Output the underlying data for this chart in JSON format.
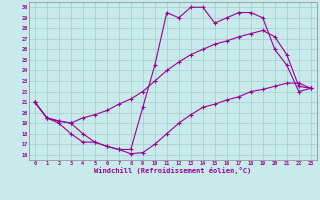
{
  "title": "",
  "xlabel": "Windchill (Refroidissement éolien,°C)",
  "xlim": [
    -0.5,
    23.5
  ],
  "ylim": [
    15.5,
    30.5
  ],
  "xticks": [
    0,
    1,
    2,
    3,
    4,
    5,
    6,
    7,
    8,
    9,
    10,
    11,
    12,
    13,
    14,
    15,
    16,
    17,
    18,
    19,
    20,
    21,
    22,
    23
  ],
  "yticks": [
    16,
    17,
    18,
    19,
    20,
    21,
    22,
    23,
    24,
    25,
    26,
    27,
    28,
    29,
    30
  ],
  "bg_color": "#c8eaea",
  "line_color": "#990099",
  "grid_color": "#a0cccc",
  "line1_x": [
    0,
    1,
    2,
    3,
    4,
    5,
    6,
    7,
    8,
    9,
    10,
    11,
    12,
    13,
    14,
    15,
    16,
    17,
    18,
    19,
    20,
    21,
    22,
    23
  ],
  "line1_y": [
    21.0,
    19.5,
    19.0,
    18.0,
    17.2,
    17.2,
    16.8,
    16.5,
    16.1,
    16.2,
    17.0,
    18.0,
    19.0,
    19.8,
    20.5,
    20.8,
    21.2,
    21.5,
    22.0,
    22.2,
    22.5,
    22.8,
    22.8,
    22.3
  ],
  "line2_x": [
    0,
    1,
    2,
    3,
    4,
    5,
    6,
    7,
    8,
    9,
    10,
    11,
    12,
    13,
    14,
    15,
    16,
    17,
    18,
    19,
    20,
    21,
    22,
    23
  ],
  "line2_y": [
    21.0,
    19.5,
    19.2,
    19.0,
    19.5,
    19.8,
    20.2,
    20.8,
    21.3,
    22.0,
    23.0,
    24.0,
    24.8,
    25.5,
    26.0,
    26.5,
    26.8,
    27.2,
    27.5,
    27.8,
    27.2,
    25.5,
    22.5,
    22.3
  ],
  "line3_x": [
    0,
    1,
    2,
    3,
    4,
    5,
    6,
    7,
    8,
    9,
    10,
    11,
    12,
    13,
    14,
    15,
    16,
    17,
    18,
    19,
    20,
    21,
    22,
    23
  ],
  "line3_y": [
    21.0,
    19.5,
    19.2,
    19.0,
    18.0,
    17.2,
    16.8,
    16.5,
    16.5,
    20.5,
    24.5,
    29.5,
    29.0,
    30.0,
    30.0,
    28.5,
    29.0,
    29.5,
    29.5,
    29.0,
    26.0,
    24.5,
    22.0,
    22.3
  ],
  "marker": "+"
}
